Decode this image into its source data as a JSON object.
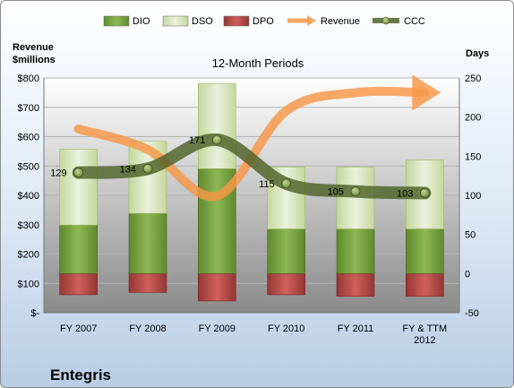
{
  "chart_data": {
    "type": "bar",
    "title": "12-Month Periods",
    "company": "Entegris",
    "left_axis_title": [
      "Revenue",
      "$millions"
    ],
    "right_axis_title": "Days",
    "categories": [
      [
        "FY 2007"
      ],
      [
        "FY 2008"
      ],
      [
        "FY 2009"
      ],
      [
        "FY 2010"
      ],
      [
        "FY 2011"
      ],
      [
        "FY & TTM",
        "2012"
      ]
    ],
    "left_axis": {
      "ylim": [
        0,
        800
      ],
      "ticks": [
        "$-",
        "$100",
        "$200",
        "$300",
        "$400",
        "$500",
        "$600",
        "$700",
        "$800"
      ]
    },
    "right_axis": {
      "ylim": [
        -50,
        250
      ],
      "ticks": [
        "-50",
        "0",
        "50",
        "100",
        "150",
        "200",
        "250"
      ]
    },
    "legend": {
      "position": "top",
      "items": [
        "DIO",
        "DSO",
        "DPO",
        "Revenue",
        "CCC"
      ]
    },
    "series": [
      {
        "name": "DIO",
        "axis": "right",
        "values": [
          62,
          77,
          134,
          57,
          57,
          57
        ]
      },
      {
        "name": "DSO",
        "axis": "right",
        "values": [
          97,
          92,
          109,
          79,
          79,
          88
        ]
      },
      {
        "name": "DPO",
        "axis": "right",
        "values": [
          -27,
          -24,
          -35,
          -27,
          -29,
          -29
        ]
      },
      {
        "name": "Revenue",
        "axis": "left",
        "values": [
          626,
          556,
          398,
          688,
          750,
          750
        ]
      },
      {
        "name": "CCC",
        "axis": "right",
        "values": [
          129,
          134,
          171,
          115,
          105,
          103
        ],
        "labels": [
          "129",
          "134",
          "171",
          "115",
          "105",
          "103"
        ]
      }
    ],
    "colors": {
      "DIO": "#77a640",
      "DSO": "#d7e4bd",
      "DPO": "#c0504d",
      "Revenue": "#f79646",
      "CCC": "#4f6228"
    },
    "grid": true
  }
}
